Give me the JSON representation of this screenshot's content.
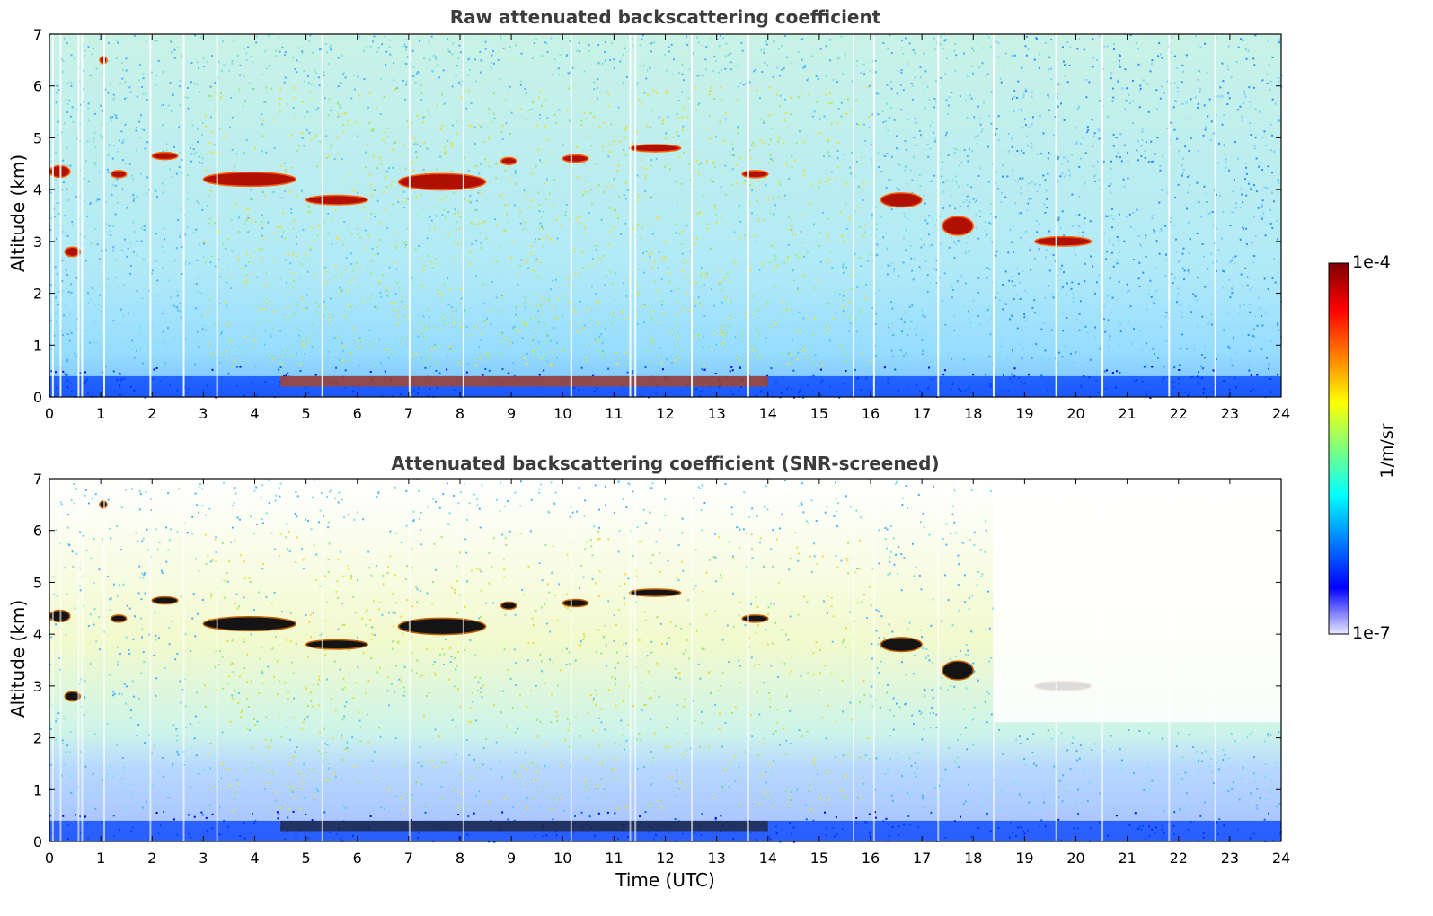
{
  "chart_data": [
    {
      "type": "heatmap",
      "title": "Raw attenuated backscattering coefficient",
      "ylabel": "Altitude (km)",
      "xlim": [
        0,
        24
      ],
      "ylim": [
        0,
        7
      ],
      "x_ticks": [
        "0",
        "1",
        "2",
        "3",
        "4",
        "5",
        "6",
        "7",
        "8",
        "9",
        "10",
        "11",
        "12",
        "13",
        "14",
        "15",
        "16",
        "17",
        "18",
        "19",
        "20",
        "21",
        "22",
        "23",
        "24"
      ],
      "y_ticks": [
        "0",
        "1",
        "2",
        "3",
        "4",
        "5",
        "6",
        "7"
      ],
      "grid": false,
      "features": {
        "near_surface_layer_km": [
          0,
          0.4
        ],
        "aerosol_band_km": [
          0.2,
          0.4
        ],
        "mid_level_clouds": [
          {
            "t": [
              0.0,
              0.4
            ],
            "alt_km": [
              4.1,
              4.6
            ]
          },
          {
            "t": [
              0.3,
              0.6
            ],
            "alt_km": [
              2.6,
              3.0
            ]
          },
          {
            "t": [
              1.0,
              1.1
            ],
            "alt_km": [
              6.4,
              6.6
            ]
          },
          {
            "t": [
              1.2,
              1.5
            ],
            "alt_km": [
              4.2,
              4.4
            ]
          },
          {
            "t": [
              2.0,
              2.5
            ],
            "alt_km": [
              4.5,
              4.8
            ]
          },
          {
            "t": [
              3.0,
              4.8
            ],
            "alt_km": [
              3.9,
              4.5
            ]
          },
          {
            "t": [
              5.0,
              6.2
            ],
            "alt_km": [
              3.6,
              4.0
            ]
          },
          {
            "t": [
              6.8,
              8.5
            ],
            "alt_km": [
              3.8,
              4.5
            ]
          },
          {
            "t": [
              8.8,
              9.1
            ],
            "alt_km": [
              4.5,
              4.6
            ]
          },
          {
            "t": [
              10.0,
              10.5
            ],
            "alt_km": [
              4.5,
              4.7
            ]
          },
          {
            "t": [
              11.3,
              12.3
            ],
            "alt_km": [
              4.7,
              4.9
            ]
          },
          {
            "t": [
              13.5,
              14.0
            ],
            "alt_km": [
              4.2,
              4.4
            ]
          },
          {
            "t": [
              16.2,
              17.0
            ],
            "alt_km": [
              3.5,
              4.1
            ]
          },
          {
            "t": [
              17.4,
              18.0
            ],
            "alt_km": [
              2.9,
              3.7
            ]
          },
          {
            "t": [
              19.2,
              20.3
            ],
            "alt_km": [
              2.8,
              3.2
            ]
          }
        ]
      }
    },
    {
      "type": "heatmap",
      "title": "Attenuated backscattering coefficient (SNR-screened)",
      "xlabel": "Time (UTC)",
      "ylabel": "Altitude (km)",
      "xlim": [
        0,
        24
      ],
      "ylim": [
        0,
        7
      ],
      "x_ticks": [
        "0",
        "1",
        "2",
        "3",
        "4",
        "5",
        "6",
        "7",
        "8",
        "9",
        "10",
        "11",
        "12",
        "13",
        "14",
        "15",
        "16",
        "17",
        "18",
        "19",
        "20",
        "21",
        "22",
        "23",
        "24"
      ],
      "y_ticks": [
        "0",
        "1",
        "2",
        "3",
        "4",
        "5",
        "6",
        "7"
      ],
      "grid": false
    }
  ],
  "colorbar": {
    "max_label": "1e-4",
    "min_label": "1e-7",
    "unit": "1/m/sr",
    "colormap": "jet",
    "scale": "log",
    "colors": [
      "#00007f",
      "#0000ff",
      "#007fff",
      "#00ffff",
      "#7fff7f",
      "#ffff00",
      "#ff7f00",
      "#ff0000",
      "#7f0000"
    ]
  }
}
